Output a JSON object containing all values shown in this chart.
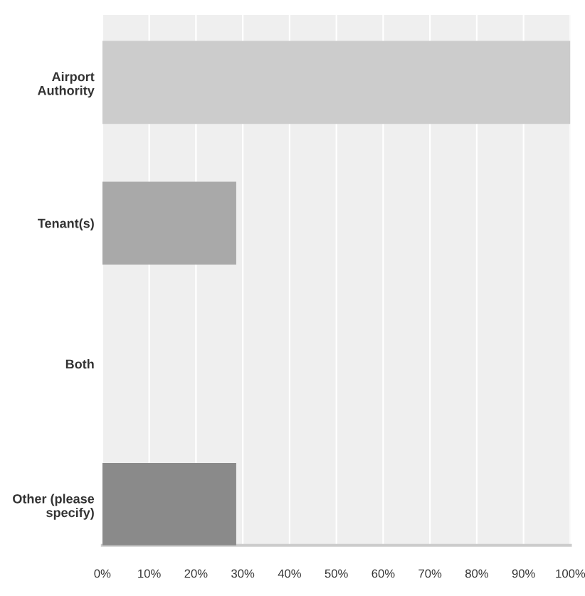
{
  "chart_data": {
    "type": "bar",
    "orientation": "horizontal",
    "categories": [
      "Airport\nAuthority",
      "Tenant(s)",
      "Both",
      "Other (please\nspecify)"
    ],
    "values": [
      100,
      28.6,
      0,
      28.6
    ],
    "colors": [
      "#cccccc",
      "#a9a9a9",
      "#b0b0b0",
      "#8a8a8a"
    ],
    "xlim": [
      0,
      100
    ],
    "xticks": [
      {
        "value": 0,
        "label": "0%"
      },
      {
        "value": 10,
        "label": "10%"
      },
      {
        "value": 20,
        "label": "20%"
      },
      {
        "value": 30,
        "label": "30%"
      },
      {
        "value": 40,
        "label": "40%"
      },
      {
        "value": 50,
        "label": "50%"
      },
      {
        "value": 60,
        "label": "60%"
      },
      {
        "value": 70,
        "label": "70%"
      },
      {
        "value": 80,
        "label": "80%"
      },
      {
        "value": 90,
        "label": "90%"
      },
      {
        "value": 100,
        "label": "100%"
      }
    ],
    "grid": "x"
  }
}
